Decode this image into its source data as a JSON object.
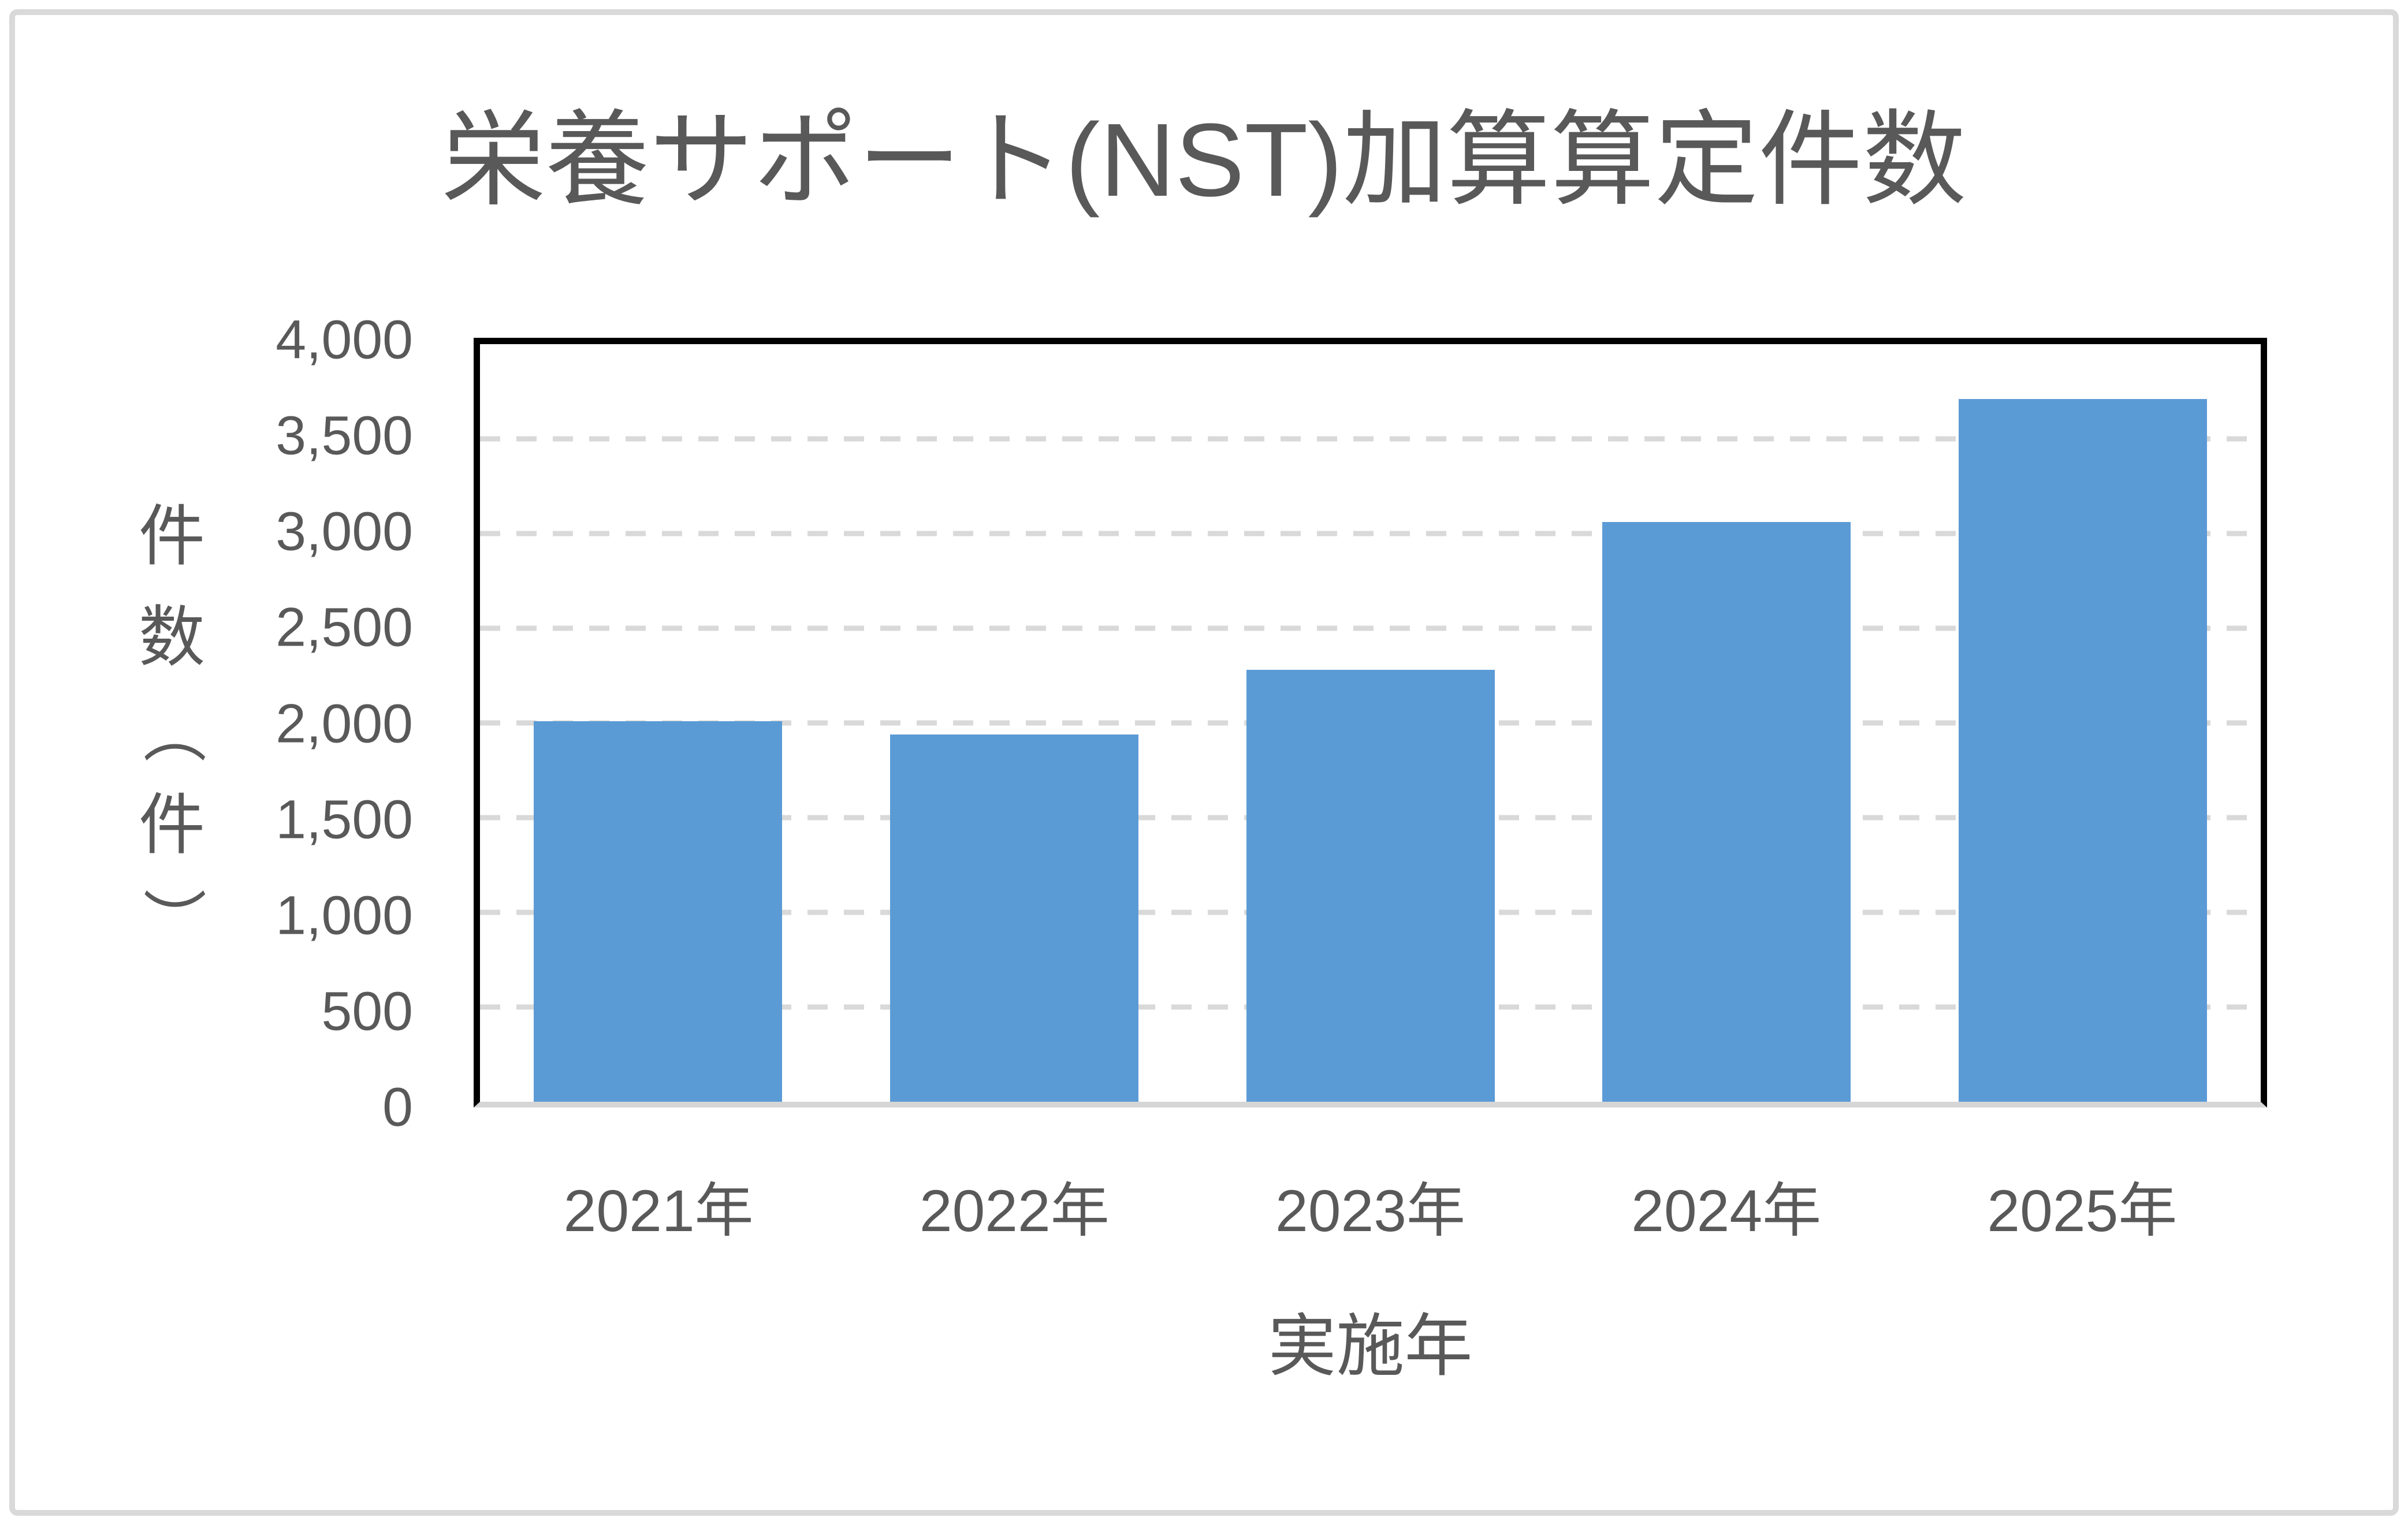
{
  "chart": {
    "title": "栄養サポート(NST)加算算定件数",
    "x_axis_title": "実施年",
    "y_axis_title": "件数（件）",
    "y_axis_title_chars": [
      "件",
      "数",
      "（",
      "件",
      "）"
    ]
  },
  "chart_data": {
    "type": "bar",
    "title": "栄養サポート(NST)加算算定件数",
    "categories": [
      "2021年",
      "2022年",
      "2023年",
      "2024年",
      "2025年"
    ],
    "values": [
      2010,
      1940,
      2280,
      3060,
      3710
    ],
    "xlabel": "実施年",
    "ylabel": "件数（件）",
    "ylim": [
      0,
      4000
    ],
    "ytick_step": 500,
    "yticks_top_to_bottom": [
      "4,000",
      "3,500",
      "3,000",
      "2,500",
      "2,000",
      "1,500",
      "1,000",
      "500",
      "0"
    ],
    "grid": "horizontal-dashed",
    "legend": "none",
    "colors": {
      "bar": "#5B9BD5",
      "text": "#595959",
      "gridline": "#D9D9D9",
      "plot_frame": "#000000",
      "x_axis_line": "#D6D6D6",
      "outer_border": "#D9D9D9",
      "background": "#FFFFFF"
    }
  }
}
